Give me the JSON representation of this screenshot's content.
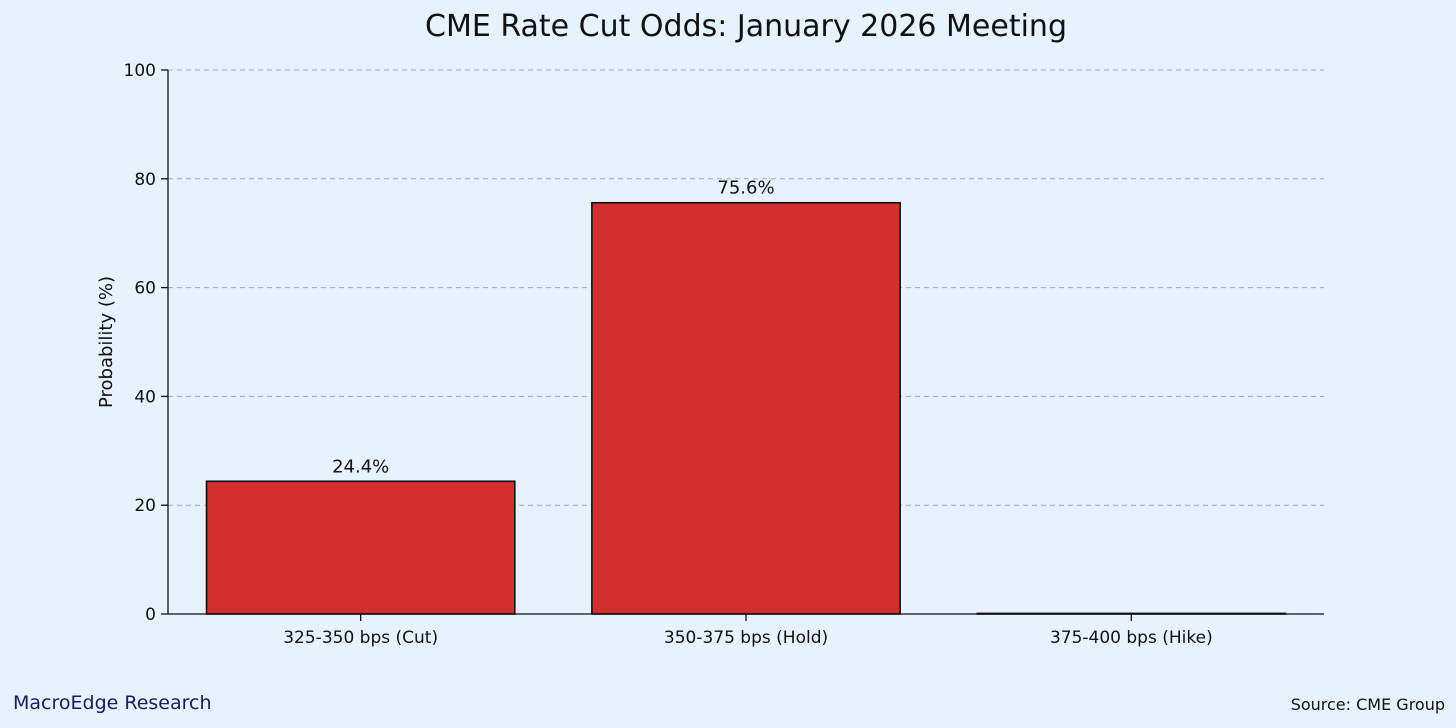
{
  "chart_data": {
    "type": "bar",
    "title": "CME Rate Cut Odds: January 2026 Meeting",
    "xlabel": "",
    "ylabel": "Probability (%)",
    "categories": [
      "325-350 bps (Cut)",
      "350-375 bps (Hold)",
      "375-400 bps (Hike)"
    ],
    "values": [
      24.4,
      75.6,
      0
    ],
    "data_labels": [
      "24.4%",
      "75.6%",
      ""
    ],
    "ylim": [
      0,
      100
    ],
    "yticks": [
      0,
      20,
      40,
      60,
      80,
      100
    ],
    "grid": true,
    "legend": "none",
    "colors": {
      "bar": "#d32f2f",
      "background": "#e6f2fe",
      "grid": "#9fb0b4",
      "brand": "#1a1a66"
    }
  },
  "footer": {
    "brand": "MacroEdge Research",
    "source": "Source: CME Group"
  }
}
